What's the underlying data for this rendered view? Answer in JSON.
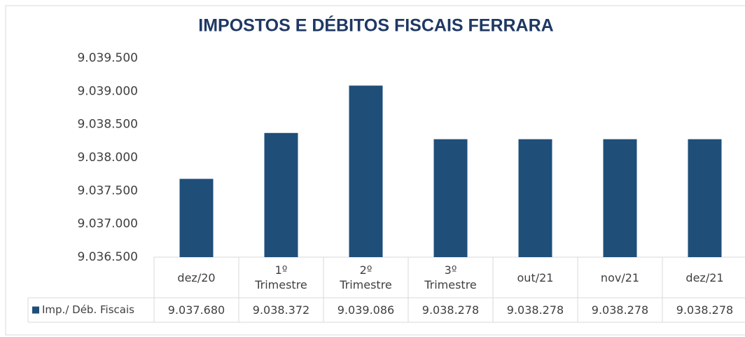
{
  "chart_data": {
    "type": "bar",
    "title": "IMPOSTOS E DÉBITOS FISCAIS FERRARA",
    "categories": [
      "dez/20",
      "1º Trimestre",
      "2º Trimestre",
      "3º Trimestre",
      "out/21",
      "nov/21",
      "dez/21"
    ],
    "series": [
      {
        "name": "Imp./ Déb. Fiscais",
        "color": "#1f4e79",
        "values": [
          9037680,
          9038372,
          9039086,
          9038278,
          9038278,
          9038278,
          9038278
        ],
        "value_labels": [
          "9.037.680",
          "9.038.372",
          "9.039.086",
          "9.038.278",
          "9.038.278",
          "9.038.278",
          "9.038.278"
        ]
      }
    ],
    "ylim": [
      9036500,
      9039500
    ],
    "yticks": [
      {
        "value": 9036500,
        "label": "9.036.500"
      },
      {
        "value": 9037000,
        "label": "9.037.000"
      },
      {
        "value": 9037500,
        "label": "9.037.500"
      },
      {
        "value": 9038000,
        "label": "9.038.000"
      },
      {
        "value": 9038500,
        "label": "9.038.500"
      },
      {
        "value": 9039000,
        "label": "9.039.000"
      },
      {
        "value": 9039500,
        "label": "9.039.500"
      }
    ],
    "grid": false
  }
}
